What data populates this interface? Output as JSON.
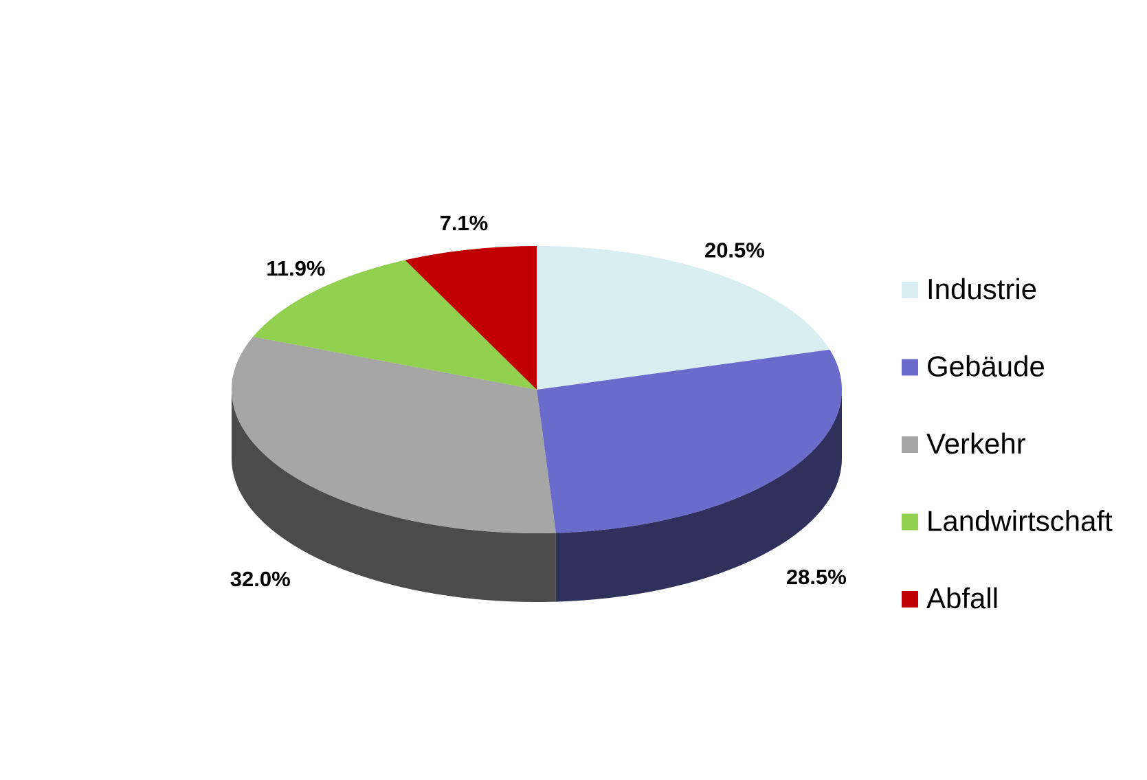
{
  "chart_data": {
    "type": "pie",
    "categories": [
      "Industrie",
      "Gebäude",
      "Verkehr",
      "Landwirtschaft",
      "Abfall"
    ],
    "values": [
      20.5,
      28.5,
      32.0,
      11.9,
      7.1
    ],
    "value_labels": [
      "20.5%",
      "28.5%",
      "32.0%",
      "11.9%",
      "7.1%"
    ],
    "colors": [
      "#d9eef0",
      "#6b6bcc",
      "#a6a6a6",
      "#92d050",
      "#c00000"
    ],
    "legend": "right"
  }
}
